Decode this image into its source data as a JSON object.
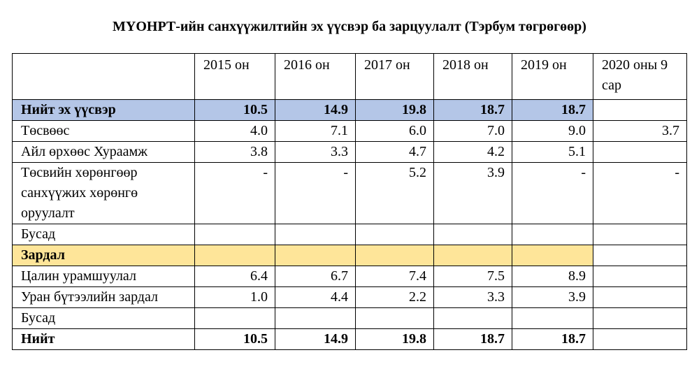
{
  "title": "МҮОНРТ-ийн санхүүжилтийн эх үүсвэр ба зарцуулалт (Тэрбум төгрөгөөр)",
  "table": {
    "header": [
      null,
      "2015 он",
      "2016 он",
      "2017 он",
      "2018 он",
      "2019 он",
      "2020 оны 9 сар"
    ],
    "rows": [
      [
        "Нийт эх үүсвэр",
        "10.5",
        "14.9",
        "19.8",
        "18.7",
        "18.7",
        null
      ],
      [
        "Төсвөөс",
        "4.0",
        "7.1",
        "6.0",
        "7.0",
        "9.0",
        "3.7"
      ],
      [
        "Айл өрхөөс Хураамж",
        "3.8",
        "3.3",
        "4.7",
        "4.2",
        "5.1",
        null
      ],
      [
        "Төсвийн хөрөнгөөр санхүүжих хөрөнгө оруулалт",
        "-",
        "-",
        "5.2",
        "3.9",
        "-",
        "-"
      ],
      [
        "Бусад",
        null,
        null,
        null,
        null,
        null,
        null
      ],
      [
        "Зардал",
        null,
        null,
        null,
        null,
        null,
        null
      ],
      [
        "Цалин урамшуулал",
        "6.4",
        "6.7",
        "7.4",
        "7.5",
        "8.9",
        null
      ],
      [
        "Уран бүтээлийн зардал",
        "1.0",
        "4.4",
        "2.2",
        "3.3",
        "3.9",
        null
      ],
      [
        "Бусад",
        null,
        null,
        null,
        null,
        null,
        null
      ],
      [
        "Нийт",
        "10.5",
        "14.9",
        "19.8",
        "18.7",
        "18.7",
        null
      ]
    ]
  }
}
